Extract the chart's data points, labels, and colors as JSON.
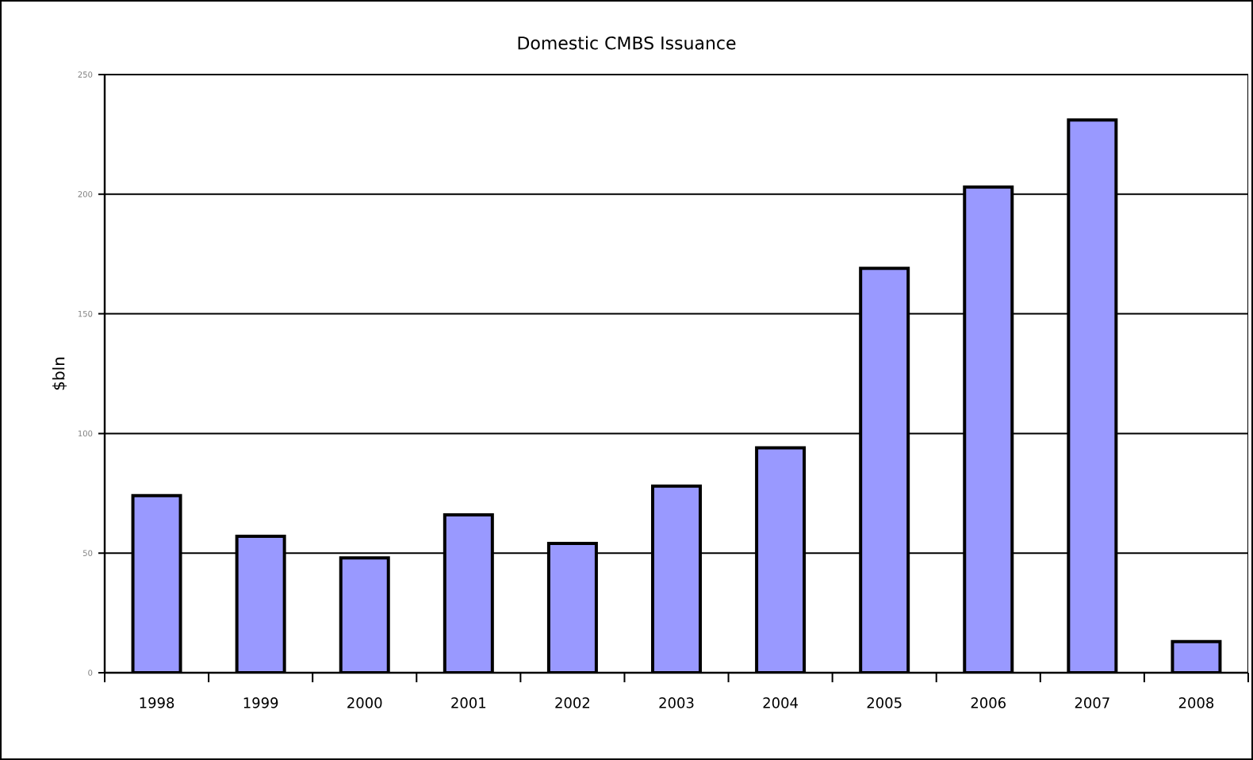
{
  "chart_data": {
    "type": "bar",
    "title": "Domestic CMBS Issuance",
    "ylabel": "$bln",
    "categories": [
      "1998",
      "1999",
      "2000",
      "2001",
      "2002",
      "2003",
      "2004",
      "2005",
      "2006",
      "2007",
      "2008"
    ],
    "values": [
      74,
      57,
      48,
      66,
      54,
      78,
      94,
      169,
      203,
      231,
      13
    ],
    "color": "#9999ff",
    "ylim": [
      0,
      250
    ],
    "yticks": [
      0,
      50,
      100,
      150,
      200,
      250
    ],
    "grid": "y"
  }
}
